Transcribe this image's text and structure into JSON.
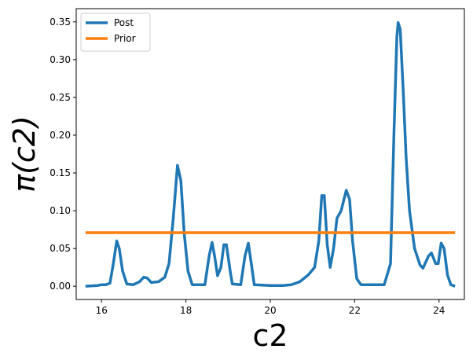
{
  "chart_data": {
    "type": "line",
    "xlabel": "c2",
    "ylabel": "π(c2)",
    "xlim": [
      15.4,
      24.6
    ],
    "ylim": [
      -0.0175,
      0.3675
    ],
    "xticks": [
      16,
      18,
      20,
      22,
      24
    ],
    "yticks": [
      0.0,
      0.05,
      0.1,
      0.15,
      0.2,
      0.25,
      0.3,
      0.35
    ],
    "xtick_labels": [
      "16",
      "18",
      "20",
      "22",
      "24"
    ],
    "ytick_labels": [
      "0.00",
      "0.05",
      "0.10",
      "0.15",
      "0.20",
      "0.25",
      "0.30",
      "0.35"
    ],
    "grid": false,
    "legend_position": "top-left",
    "series": [
      {
        "name": "Post",
        "color": "#1f77b4",
        "points": [
          [
            15.62,
            0.0
          ],
          [
            15.9,
            0.001
          ],
          [
            16.0,
            0.002
          ],
          [
            16.1,
            0.002
          ],
          [
            16.2,
            0.004
          ],
          [
            16.28,
            0.03
          ],
          [
            16.36,
            0.06
          ],
          [
            16.42,
            0.05
          ],
          [
            16.5,
            0.02
          ],
          [
            16.6,
            0.003
          ],
          [
            16.75,
            0.002
          ],
          [
            16.9,
            0.006
          ],
          [
            17.0,
            0.012
          ],
          [
            17.08,
            0.011
          ],
          [
            17.18,
            0.005
          ],
          [
            17.35,
            0.006
          ],
          [
            17.5,
            0.012
          ],
          [
            17.6,
            0.03
          ],
          [
            17.7,
            0.09
          ],
          [
            17.8,
            0.16
          ],
          [
            17.88,
            0.14
          ],
          [
            17.96,
            0.07
          ],
          [
            18.05,
            0.02
          ],
          [
            18.15,
            0.002
          ],
          [
            18.45,
            0.002
          ],
          [
            18.55,
            0.04
          ],
          [
            18.62,
            0.058
          ],
          [
            18.68,
            0.04
          ],
          [
            18.75,
            0.014
          ],
          [
            18.83,
            0.025
          ],
          [
            18.9,
            0.055
          ],
          [
            18.96,
            0.055
          ],
          [
            19.05,
            0.02
          ],
          [
            19.1,
            0.003
          ],
          [
            19.3,
            0.002
          ],
          [
            19.4,
            0.04
          ],
          [
            19.48,
            0.057
          ],
          [
            19.55,
            0.03
          ],
          [
            19.62,
            0.002
          ],
          [
            20.0,
            0.001
          ],
          [
            20.3,
            0.001
          ],
          [
            20.5,
            0.002
          ],
          [
            20.7,
            0.006
          ],
          [
            20.9,
            0.015
          ],
          [
            21.05,
            0.025
          ],
          [
            21.15,
            0.06
          ],
          [
            21.22,
            0.12
          ],
          [
            21.28,
            0.12
          ],
          [
            21.35,
            0.055
          ],
          [
            21.42,
            0.025
          ],
          [
            21.5,
            0.05
          ],
          [
            21.58,
            0.09
          ],
          [
            21.68,
            0.1
          ],
          [
            21.8,
            0.127
          ],
          [
            21.88,
            0.115
          ],
          [
            21.95,
            0.06
          ],
          [
            22.05,
            0.01
          ],
          [
            22.15,
            0.002
          ],
          [
            22.7,
            0.002
          ],
          [
            22.85,
            0.03
          ],
          [
            22.93,
            0.2
          ],
          [
            23.0,
            0.33
          ],
          [
            23.03,
            0.349
          ],
          [
            23.08,
            0.34
          ],
          [
            23.15,
            0.26
          ],
          [
            23.22,
            0.17
          ],
          [
            23.3,
            0.1
          ],
          [
            23.42,
            0.05
          ],
          [
            23.55,
            0.028
          ],
          [
            23.62,
            0.024
          ],
          [
            23.75,
            0.04
          ],
          [
            23.82,
            0.044
          ],
          [
            23.92,
            0.03
          ],
          [
            23.98,
            0.03
          ],
          [
            24.05,
            0.057
          ],
          [
            24.12,
            0.05
          ],
          [
            24.2,
            0.015
          ],
          [
            24.28,
            0.002
          ],
          [
            24.38,
            0.0
          ]
        ]
      },
      {
        "name": "Prior",
        "color": "#ff7f0e",
        "points": [
          [
            15.62,
            0.071
          ],
          [
            24.38,
            0.071
          ]
        ]
      }
    ]
  }
}
